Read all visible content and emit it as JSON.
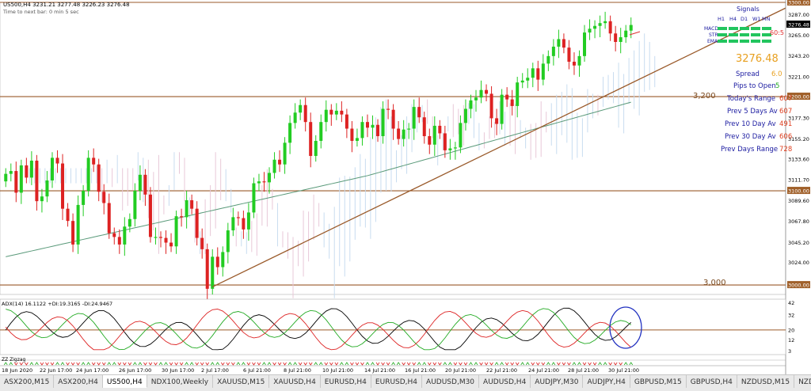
{
  "header": {
    "symbol_line": "US500,H4  3231.21 3277.48 3226.23 3276.48",
    "subline": "Time to next bar: 0 min 5 sec"
  },
  "signals": {
    "title": "Signals",
    "timeframes": [
      "H1",
      "H4",
      "D1",
      "W1",
      "MN"
    ],
    "rows": [
      "MACD",
      "STR",
      "EMA"
    ],
    "color": "#22c55e"
  },
  "info": {
    "price": "3276.48",
    "lines": [
      {
        "label": "Spread",
        "value": "6.0"
      },
      {
        "label": "Pips to Open",
        "value": "5"
      },
      {
        "label": "Today's Range",
        "value": "607"
      },
      {
        "label": "Prev 5 Days Av",
        "value": "607"
      },
      {
        "label": "Prev 10 Day Av",
        "value": "491"
      },
      {
        "label": "Prev 30 Day Av",
        "value": "606"
      },
      {
        "label": "Prev Days Range",
        "value": "728"
      }
    ]
  },
  "annotations": {
    "arrow_text": "60:5",
    "level_3200": "3,200",
    "level_3000": "3,000"
  },
  "adx_label": "ADX(14) 16.1122 +DI:19.3165 -DI:24.9467",
  "zz_label": "ZZ Zigzag",
  "tabs": {
    "items": [
      "ASX200,M15",
      "ASX200,H4",
      "US500,H4",
      "NDX100,Weekly",
      "XAUUSD,M15",
      "XAUUSD,H4",
      "EURUSD,H4",
      "EURUSD,H4",
      "AUDUSD,M30",
      "AUDUSD,H4",
      "AUDJPY,M30",
      "AUDJPY,H4",
      "GBPUSD,M15",
      "GBPUSD,H4",
      "NZDUSD,M15",
      "NZDUSD,H4",
      "USDJPY,M15"
    ],
    "active": 2
  },
  "chart_data": {
    "type": "candlestick",
    "symbol": "US500",
    "timeframe": "H4",
    "ohlc": {
      "open": 3231.21,
      "high": 3277.48,
      "low": 3226.23,
      "close": 3276.48
    },
    "ylim": [
      2990,
      3300
    ],
    "yticks": [
      "3300.00",
      "3287.00",
      "3265.00",
      "3243.20",
      "3221.00",
      "3200.00",
      "3177.30",
      "3155.20",
      "3133.60",
      "3111.70",
      "3100.00",
      "3089.60",
      "3067.80",
      "3045.20",
      "3024.00",
      "3000.00"
    ],
    "xticks": [
      "18 Jun 2020",
      "22 Jun 17:00",
      "24 Jun 17:00",
      "26 Jun 17:00",
      "30 Jun 17:00",
      "2 Jul 17:00",
      "6 Jul 21:00",
      "8 Jul 21:00",
      "10 Jul 21:00",
      "14 Jul 21:00",
      "16 Jul 21:00",
      "20 Jul 21:00",
      "22 Jul 21:00",
      "24 Jul 21:00",
      "28 Jul 21:00",
      "30 Jul 21:00"
    ],
    "horizontal_levels": [
      3300,
      3200,
      3100,
      3000
    ],
    "trendline": {
      "from": {
        "bar": 40,
        "price": 2998
      },
      "to": {
        "bar": 249,
        "price": 3294
      }
    },
    "closes": [
      3118,
      3121,
      3098,
      3127,
      3114,
      3132,
      3089,
      3094,
      3111,
      3135,
      3129,
      3081,
      3068,
      3043,
      3085,
      3100,
      3135,
      3128,
      3099,
      3087,
      3055,
      3051,
      3043,
      3062,
      3070,
      3100,
      3117,
      3096,
      3051,
      3051,
      3050,
      3045,
      3041,
      3073,
      3072,
      3090,
      3081,
      3050,
      3038,
      2996,
      3030,
      3019,
      3035,
      3058,
      3072,
      3071,
      3059,
      3077,
      3108,
      3110,
      3109,
      3119,
      3133,
      3128,
      3151,
      3172,
      3183,
      3191,
      3173,
      3137,
      3153,
      3173,
      3186,
      3181,
      3185,
      3181,
      3166,
      3153,
      3156,
      3173,
      3167,
      3170,
      3158,
      3187,
      3186,
      3166,
      3155,
      3165,
      3166,
      3189,
      3178,
      3158,
      3149,
      3169,
      3161,
      3143,
      3145,
      3146,
      3172,
      3187,
      3196,
      3199,
      3207,
      3203,
      3177,
      3171,
      3202,
      3197,
      3190,
      3215,
      3217,
      3220,
      3230,
      3218,
      3235,
      3243,
      3253,
      3261,
      3252,
      3237,
      3233,
      3243,
      3268,
      3272,
      3275,
      3278,
      3280,
      3267,
      3258,
      3263,
      3270,
      3276
    ],
    "adx": {
      "ylim": [
        0,
        45
      ],
      "level": 20,
      "yticks": [
        "42",
        "32",
        "20",
        "12",
        "3"
      ],
      "series": [
        {
          "name": "ADX",
          "color": "#000000"
        },
        {
          "name": "+DI",
          "color": "#22aa22"
        },
        {
          "name": "-DI",
          "color": "#dd2222"
        }
      ]
    }
  }
}
